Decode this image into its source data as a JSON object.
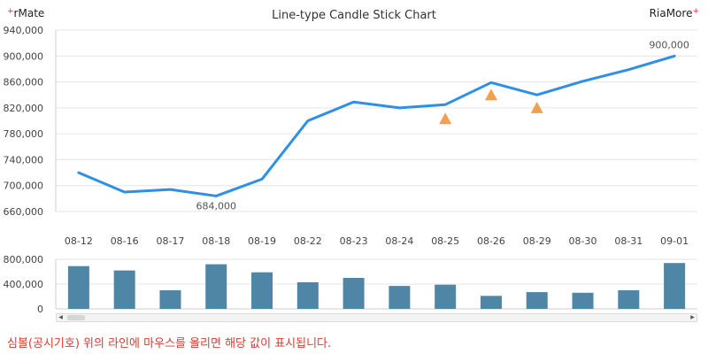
{
  "brand": {
    "left": "rMate",
    "right": "RiaMore"
  },
  "chart_data": [
    {
      "type": "line",
      "title": "Line-type Candle Stick Chart",
      "categories": [
        "08-12",
        "08-16",
        "08-17",
        "08-18",
        "08-19",
        "08-22",
        "08-23",
        "08-24",
        "08-25",
        "08-26",
        "08-29",
        "08-30",
        "08-31",
        "09-01"
      ],
      "series": [
        {
          "values": [
            720000,
            690000,
            694000,
            684000,
            710000,
            800000,
            829000,
            820000,
            825000,
            859000,
            840000,
            861000,
            879000,
            900000
          ]
        }
      ],
      "markers": [
        {
          "category": "08-25",
          "value": 803000,
          "symbol": "triangle-up",
          "color": "#f0a050"
        },
        {
          "category": "08-26",
          "value": 840000,
          "symbol": "triangle-up",
          "color": "#f0a050"
        },
        {
          "category": "08-29",
          "value": 820000,
          "symbol": "triangle-up",
          "color": "#f0a050"
        }
      ],
      "data_labels": [
        {
          "category": "08-18",
          "text": "684,000"
        },
        {
          "category": "09-01",
          "text": "900,000"
        }
      ],
      "yticks": [
        "940,000",
        "900,000",
        "860,000",
        "820,000",
        "780,000",
        "740,000",
        "700,000",
        "660,000"
      ],
      "ylim": [
        660000,
        940000
      ],
      "grid": true,
      "line_color": "#2e8fe6"
    },
    {
      "type": "bar",
      "categories": [
        "08-12",
        "08-16",
        "08-17",
        "08-18",
        "08-19",
        "08-22",
        "08-23",
        "08-24",
        "08-25",
        "08-26",
        "08-29",
        "08-30",
        "08-31",
        "09-01"
      ],
      "values": [
        690000,
        620000,
        300000,
        720000,
        590000,
        430000,
        500000,
        370000,
        390000,
        210000,
        270000,
        260000,
        300000,
        740000
      ],
      "yticks": [
        "800,000",
        "400,000",
        "0"
      ],
      "ylim": [
        0,
        800000
      ],
      "bar_color": "#4f86a5"
    }
  ],
  "hint": "심볼(공시기호) 위의 라인에 마우스를 올리면 해당 값이 표시됩니다."
}
